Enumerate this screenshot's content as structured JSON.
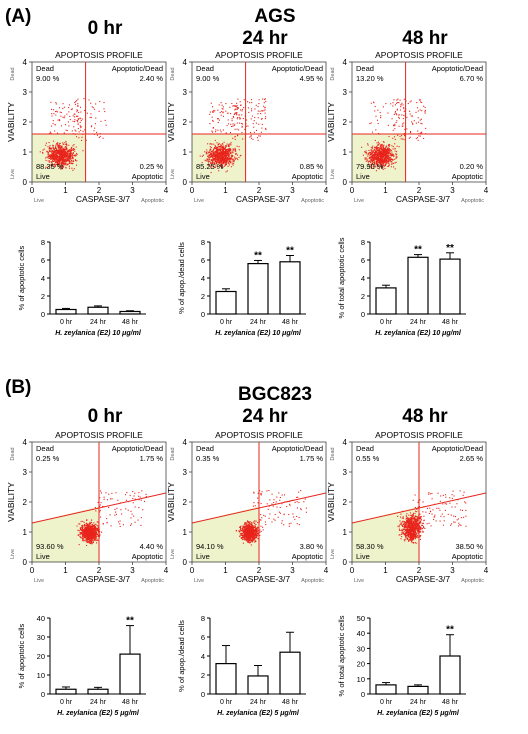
{
  "panels": [
    {
      "letter": "(A)",
      "cell_line": "AGS",
      "flow": [
        {
          "time": "0 hr",
          "profile_title": "APOPTOSIS PROFILE",
          "quadrants": {
            "dead": "9.00 %",
            "apoptotic_dead": "2.40 %",
            "live": "88.35 %",
            "apoptotic": "0.25 %"
          }
        },
        {
          "time": "24 hr",
          "profile_title": "APOPTOSIS PROFILE",
          "quadrants": {
            "dead": "9.00 %",
            "apoptotic_dead": "4.95 %",
            "live": "85.25 %",
            "apoptotic": "0.85 %"
          }
        },
        {
          "time": "48 hr",
          "profile_title": "APOPTOSIS PROFILE",
          "quadrants": {
            "dead": "13.20 %",
            "apoptotic_dead": "6.70 %",
            "live": "79.90 %",
            "apoptotic": "0.20 %"
          }
        }
      ]
    },
    {
      "letter": "(B)",
      "cell_line": "BGC823",
      "flow": [
        {
          "time": "0 hr",
          "profile_title": "APOPTOSIS PROFILE",
          "quadrants": {
            "dead": "0.25 %",
            "apoptotic_dead": "1.75 %",
            "live": "93.60 %",
            "apoptotic": "4.40 %"
          }
        },
        {
          "time": "24 hr",
          "profile_title": "APOPTOSIS PROFILE",
          "quadrants": {
            "dead": "0.35 %",
            "apoptotic_dead": "1.75 %",
            "live": "94.10 %",
            "apoptotic": "3.80 %"
          }
        },
        {
          "time": "48 hr",
          "profile_title": "APOPTOSIS PROFILE",
          "quadrants": {
            "dead": "0.55 %",
            "apoptotic_dead": "2.65 %",
            "live": "58.30 %",
            "apoptotic": "38.50 %"
          }
        }
      ]
    }
  ],
  "flow_labels": {
    "dead": "Dead",
    "live": "Live",
    "apoptotic_dead": "Apoptotic/Dead",
    "apoptotic": "Apoptotic",
    "x_axis": "CASPASE-3/7",
    "y_axis": "VIABILITY",
    "x_ticks": [
      "0",
      "1",
      "2",
      "3",
      "4"
    ],
    "y_ticks": [
      "0",
      "1",
      "2",
      "3",
      "4"
    ],
    "x_live": "Live",
    "x_apoptotic": "Apoptotic"
  },
  "colors": {
    "dots": "#e8241c",
    "gate": "#e8241c",
    "live_fill": "#eef3cc"
  },
  "chart_data": [
    {
      "type": "bar",
      "panel": "A",
      "categories": [
        "0 hr",
        "24 hr",
        "48 hr"
      ],
      "values": [
        0.5,
        0.75,
        0.28
      ],
      "errors": [
        0.12,
        0.15,
        0.08
      ],
      "ylabel": "% of apoptotic cells",
      "xlabel": "H. zeylanica (E2) 10 μg/ml",
      "ylim": [
        0,
        8
      ],
      "yticks": [
        "0",
        "2",
        "4",
        "6",
        "8"
      ],
      "significance": [
        "",
        "",
        ""
      ]
    },
    {
      "type": "bar",
      "panel": "A",
      "categories": [
        "0 hr",
        "24 hr",
        "48 hr"
      ],
      "values": [
        2.5,
        5.6,
        5.8
      ],
      "errors": [
        0.3,
        0.35,
        0.7
      ],
      "ylabel": "% of apop./dead cells",
      "xlabel": "H. zeylanica (E2) 10 μg/ml",
      "ylim": [
        0,
        8
      ],
      "yticks": [
        "0",
        "2",
        "4",
        "6",
        "8"
      ],
      "significance": [
        "",
        "**",
        "**"
      ]
    },
    {
      "type": "bar",
      "panel": "A",
      "categories": [
        "0 hr",
        "24 hr",
        "48 hr"
      ],
      "values": [
        2.9,
        6.3,
        6.1
      ],
      "errors": [
        0.3,
        0.3,
        0.7
      ],
      "ylabel": "% of total apoptotic cells",
      "xlabel": "H. zeylanica (E2) 10 μg/ml",
      "ylim": [
        0,
        8
      ],
      "yticks": [
        "0",
        "2",
        "4",
        "6",
        "8"
      ],
      "significance": [
        "",
        "**",
        "**"
      ]
    },
    {
      "type": "bar",
      "panel": "B",
      "categories": [
        "0 hr",
        "24 hr",
        "48 hr"
      ],
      "values": [
        2.5,
        2.5,
        21
      ],
      "errors": [
        1.2,
        1.0,
        15
      ],
      "ylabel": "% of apoptotic cells",
      "xlabel": "H. zeylanica (E2) 5 μg/ml",
      "ylim": [
        0,
        40
      ],
      "yticks": [
        "0",
        "10",
        "20",
        "30",
        "40"
      ],
      "significance": [
        "",
        "",
        "**"
      ]
    },
    {
      "type": "bar",
      "panel": "B",
      "categories": [
        "0 hr",
        "24 hr",
        "48 hr"
      ],
      "values": [
        3.2,
        1.9,
        4.4
      ],
      "errors": [
        1.9,
        1.1,
        2.1
      ],
      "ylabel": "% of apop./dead cells",
      "xlabel": "H. zeylanica (E2) 5 μg/ml",
      "ylim": [
        0,
        8
      ],
      "yticks": [
        "0",
        "2",
        "4",
        "6",
        "8"
      ],
      "significance": [
        "",
        "",
        ""
      ]
    },
    {
      "type": "bar",
      "panel": "B",
      "categories": [
        "0 hr",
        "24 hr",
        "48 hr"
      ],
      "values": [
        6,
        5,
        25
      ],
      "errors": [
        1.5,
        1,
        14
      ],
      "ylabel": "% of total apoptotic cells",
      "xlabel": "H. zeylanica (E2) 5 μg/ml",
      "ylim": [
        0,
        50
      ],
      "yticks": [
        "0",
        "10",
        "20",
        "30",
        "40",
        "50"
      ],
      "significance": [
        "",
        "",
        "**"
      ]
    }
  ]
}
